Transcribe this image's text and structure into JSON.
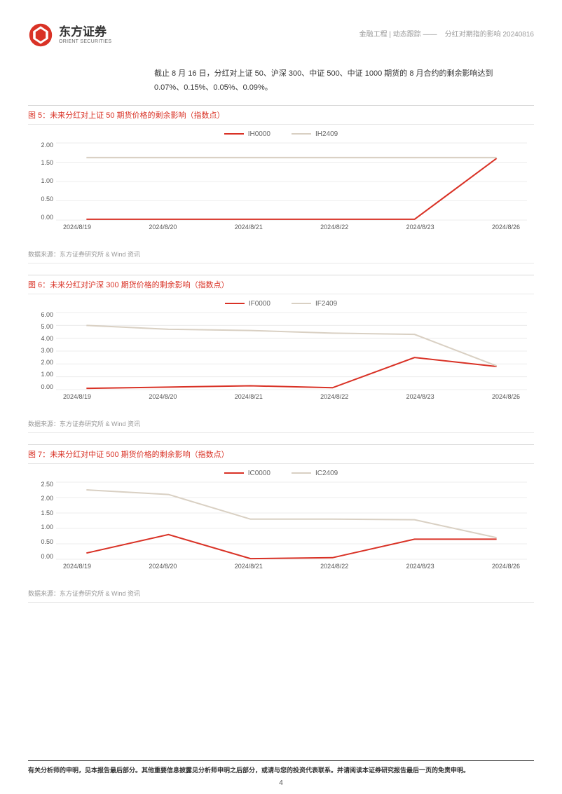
{
  "header": {
    "brand_cn": "东方证券",
    "brand_en": "ORIENT SECURITIES",
    "doc_category": "金融工程 | 动态跟踪 ——",
    "doc_title": "分红对期指的影响 20240816"
  },
  "intro": "截止 8 月 16 日，分红对上证 50、沪深 300、中证 500、中证 1000 期货的 8 月合约的剩余影响达到 0.07%、0.15%、0.05%、0.09%。",
  "charts": [
    {
      "id": "chart5",
      "title": "图 5：未来分红对上证 50 期货价格的剩余影响（指数点）",
      "type": "line",
      "series": [
        {
          "name": "IH0000",
          "color": "#d93226",
          "values": [
            0.02,
            0.02,
            0.02,
            0.02,
            0.02,
            1.6
          ]
        },
        {
          "name": "IH2409",
          "color": "#d9d0c3",
          "values": [
            1.62,
            1.62,
            1.62,
            1.62,
            1.62,
            1.62
          ]
        }
      ],
      "x_labels": [
        "2024/8/19",
        "2024/8/20",
        "2024/8/21",
        "2024/8/22",
        "2024/8/23",
        "2024/8/26"
      ],
      "y_ticks": [
        2.0,
        1.5,
        1.0,
        0.5,
        0.0
      ],
      "ylim": [
        0,
        2.0
      ],
      "grid_color": "#e8e8e8",
      "line_width": 2,
      "source": "数据来源：东方证券研究所 & Wind 资讯"
    },
    {
      "id": "chart6",
      "title": "图 6：未来分红对沪深 300 期货价格的剩余影响（指数点）",
      "type": "line",
      "series": [
        {
          "name": "IF0000",
          "color": "#d93226",
          "values": [
            0.1,
            0.2,
            0.3,
            0.15,
            2.5,
            1.8
          ]
        },
        {
          "name": "IF2409",
          "color": "#d9d0c3",
          "values": [
            5.0,
            4.7,
            4.6,
            4.4,
            4.3,
            1.85
          ]
        }
      ],
      "x_labels": [
        "2024/8/19",
        "2024/8/20",
        "2024/8/21",
        "2024/8/22",
        "2024/8/23",
        "2024/8/26"
      ],
      "y_ticks": [
        6.0,
        5.0,
        4.0,
        3.0,
        2.0,
        1.0,
        0.0
      ],
      "ylim": [
        0,
        6.0
      ],
      "grid_color": "#e8e8e8",
      "line_width": 2,
      "source": "数据来源：东方证券研究所 & Wind 资讯"
    },
    {
      "id": "chart7",
      "title": "图 7：未来分红对中证 500 期货价格的剩余影响（指数点）",
      "type": "line",
      "series": [
        {
          "name": "IC0000",
          "color": "#d93226",
          "values": [
            0.2,
            0.8,
            0.02,
            0.05,
            0.65,
            0.65
          ]
        },
        {
          "name": "IC2409",
          "color": "#d9d0c3",
          "values": [
            2.25,
            2.1,
            1.3,
            1.3,
            1.28,
            0.7
          ]
        }
      ],
      "x_labels": [
        "2024/8/19",
        "2024/8/20",
        "2024/8/21",
        "2024/8/22",
        "2024/8/23",
        "2024/8/26"
      ],
      "y_ticks": [
        2.5,
        2.0,
        1.5,
        1.0,
        0.5,
        0.0
      ],
      "ylim": [
        0,
        2.5
      ],
      "grid_color": "#e8e8e8",
      "line_width": 2,
      "source": "数据来源：东方证券研究所 & Wind 资讯"
    }
  ],
  "footer": {
    "disclaimer": "有关分析师的申明，见本报告最后部分。其他重要信息披露见分析师申明之后部分，或请与您的投资代表联系。并请阅读本证券研究报告最后一页的免责申明。",
    "page_number": "4"
  },
  "colors": {
    "brand_red": "#d93226",
    "text_gray": "#999999",
    "grid": "#e8e8e8"
  }
}
